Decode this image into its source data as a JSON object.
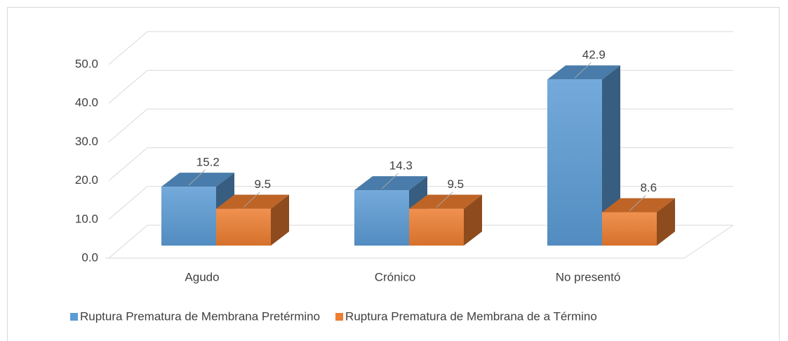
{
  "chart_data": {
    "type": "bar3d",
    "categories": [
      "Agudo",
      "Crónico",
      "No presentó"
    ],
    "series": [
      {
        "name": "Ruptura Prematura de Membrana Pretérmino",
        "color": "#5b9bd5",
        "values": [
          15.2,
          14.3,
          42.9
        ]
      },
      {
        "name": "Ruptura Prematura de Membrana de a Término",
        "color": "#ed7d31",
        "values": [
          9.5,
          9.5,
          8.6
        ]
      }
    ],
    "ylim": [
      0,
      50
    ],
    "yticks": [
      {
        "value": 0,
        "label": "0.0"
      },
      {
        "value": 10,
        "label": "10.0"
      },
      {
        "value": 20,
        "label": "20.0"
      },
      {
        "value": 30,
        "label": "30.0"
      },
      {
        "value": 40,
        "label": "40.0"
      },
      {
        "value": 50,
        "label": "50.0"
      }
    ],
    "grid": true,
    "legend": "bottom"
  }
}
